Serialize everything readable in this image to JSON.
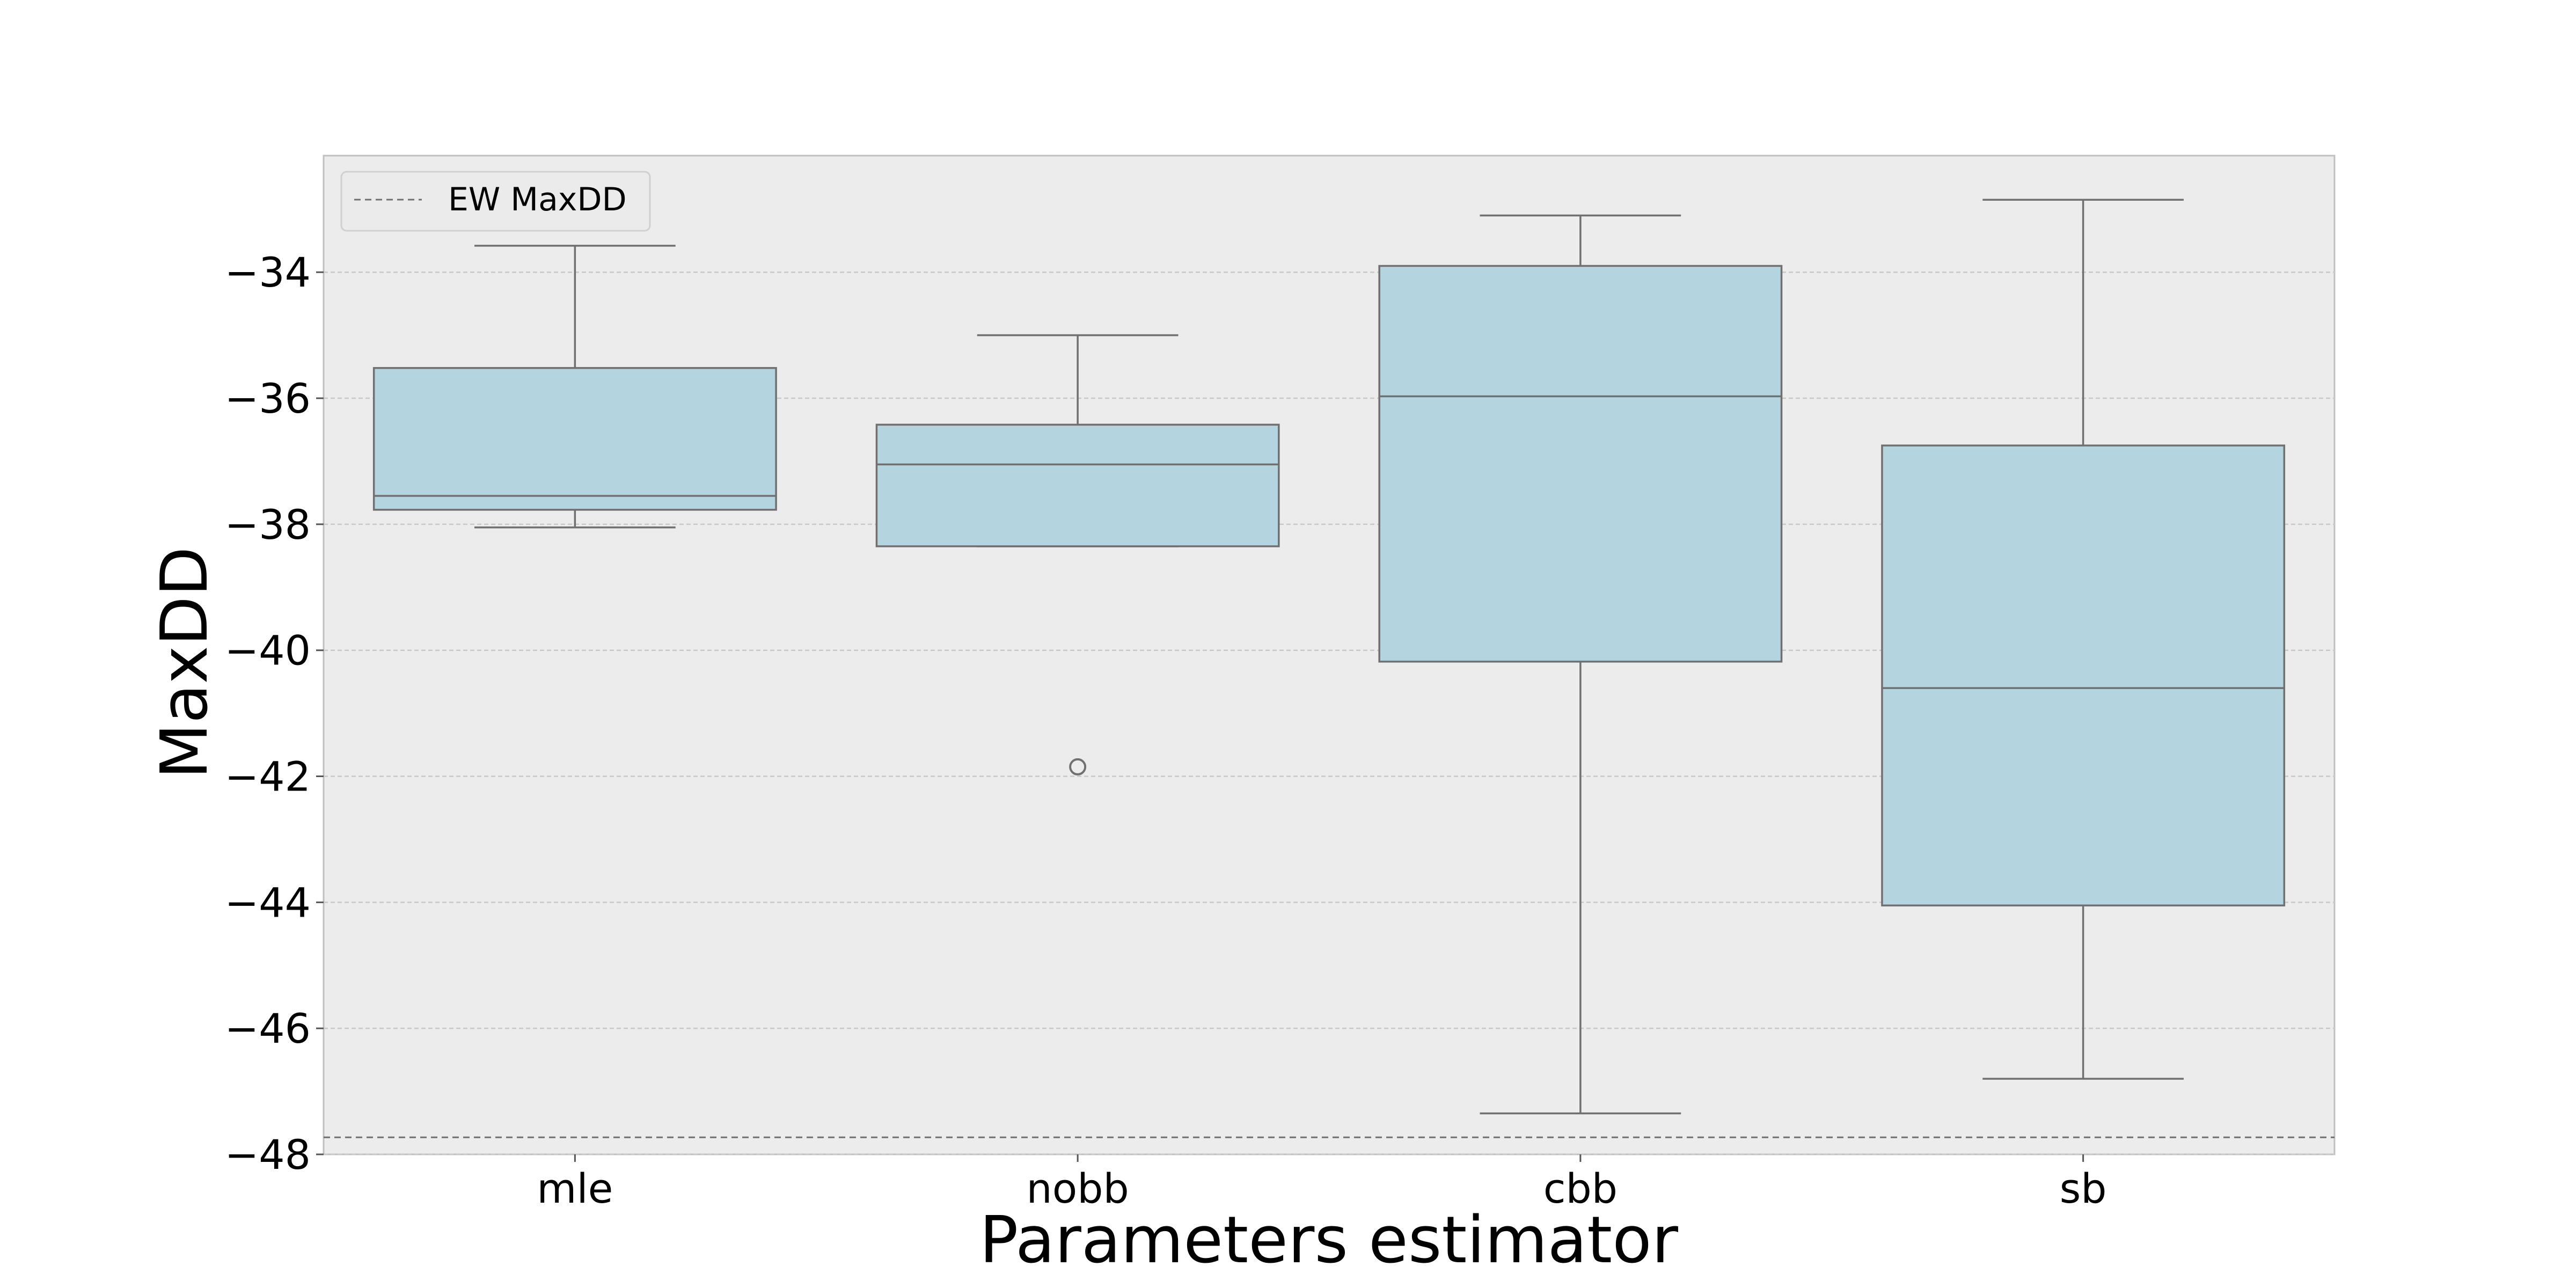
{
  "chart_data": {
    "type": "box",
    "title": "",
    "xlabel": "Parameters estimator",
    "ylabel": "MaxDD",
    "ylim": [
      -48.0,
      -32.15
    ],
    "yticks": [
      -48,
      -46,
      -44,
      -42,
      -40,
      -38,
      -36,
      -34
    ],
    "ytick_labels": [
      "−48",
      "−46",
      "−44",
      "−42",
      "−40",
      "−38",
      "−36",
      "−34"
    ],
    "grid": "horizontal dashed",
    "legend": {
      "position": "top-left",
      "entries": [
        "EW MaxDD"
      ]
    },
    "reference_line": {
      "label": "EW MaxDD",
      "value": -47.73,
      "style": "dashed"
    },
    "categories": [
      "mle",
      "nobb",
      "cbb",
      "sb"
    ],
    "boxes": [
      {
        "category": "mle",
        "whisker_low": -38.05,
        "q1": -37.77,
        "median": -37.55,
        "q3": -35.52,
        "whisker_high": -33.58,
        "outliers": []
      },
      {
        "category": "nobb",
        "whisker_low": -38.35,
        "q1": -38.35,
        "median": -37.05,
        "q3": -36.42,
        "whisker_high": -35.0,
        "outliers": [
          -41.85
        ]
      },
      {
        "category": "cbb",
        "whisker_low": -47.35,
        "q1": -40.18,
        "median": -35.97,
        "q3": -33.9,
        "whisker_high": -33.1,
        "outliers": []
      },
      {
        "category": "sb",
        "whisker_low": -46.8,
        "q1": -44.05,
        "median": -40.6,
        "q3": -36.75,
        "whisker_high": -32.85,
        "outliers": []
      }
    ],
    "colors": {
      "box_fill": "#b4d4df",
      "box_edge": "#707070",
      "plot_bg": "#ececec",
      "grid": "#c8c8c8",
      "reference_line": "#707070"
    }
  }
}
